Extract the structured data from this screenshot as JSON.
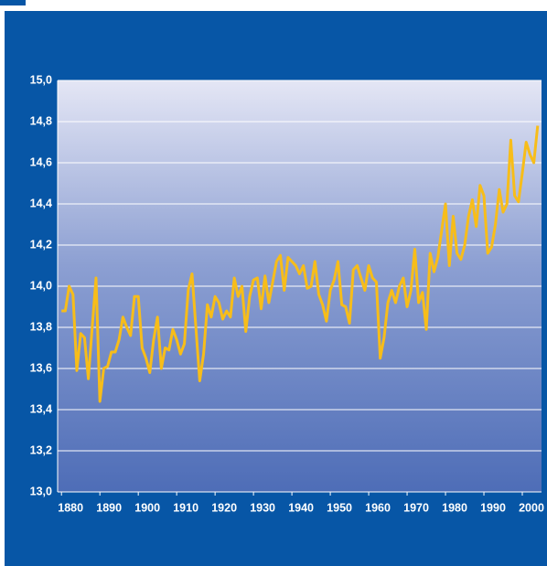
{
  "chart_data": {
    "type": "line",
    "x": [
      1880,
      1881,
      1882,
      1883,
      1884,
      1885,
      1886,
      1887,
      1888,
      1889,
      1890,
      1891,
      1892,
      1893,
      1894,
      1895,
      1896,
      1897,
      1898,
      1899,
      1900,
      1901,
      1902,
      1903,
      1904,
      1905,
      1906,
      1907,
      1908,
      1909,
      1910,
      1911,
      1912,
      1913,
      1914,
      1915,
      1916,
      1917,
      1918,
      1919,
      1920,
      1921,
      1922,
      1923,
      1924,
      1925,
      1926,
      1927,
      1928,
      1929,
      1930,
      1931,
      1932,
      1933,
      1934,
      1935,
      1936,
      1937,
      1938,
      1939,
      1940,
      1941,
      1942,
      1943,
      1944,
      1945,
      1946,
      1947,
      1948,
      1949,
      1950,
      1951,
      1952,
      1953,
      1954,
      1955,
      1956,
      1957,
      1958,
      1959,
      1960,
      1961,
      1962,
      1963,
      1964,
      1965,
      1966,
      1967,
      1968,
      1969,
      1970,
      1971,
      1972,
      1973,
      1974,
      1975,
      1976,
      1977,
      1978,
      1979,
      1980,
      1981,
      1982,
      1983,
      1984,
      1985,
      1986,
      1987,
      1988,
      1989,
      1990,
      1991,
      1992,
      1993,
      1994,
      1995,
      1996,
      1997,
      1998,
      1999,
      2000,
      2001,
      2002,
      2003,
      2004
    ],
    "values": [
      13.88,
      13.88,
      14.0,
      13.96,
      13.59,
      13.77,
      13.75,
      13.55,
      13.8,
      14.04,
      13.44,
      13.6,
      13.61,
      13.68,
      13.68,
      13.74,
      13.85,
      13.8,
      13.76,
      13.95,
      13.95,
      13.7,
      13.65,
      13.58,
      13.74,
      13.85,
      13.6,
      13.7,
      13.69,
      13.79,
      13.74,
      13.67,
      13.72,
      13.98,
      14.06,
      13.8,
      13.54,
      13.67,
      13.91,
      13.85,
      13.95,
      13.92,
      13.84,
      13.88,
      13.85,
      14.04,
      13.95,
      14.0,
      13.78,
      13.95,
      14.03,
      14.04,
      13.89,
      14.05,
      13.92,
      14.02,
      14.12,
      14.15,
      13.98,
      14.14,
      14.12,
      14.1,
      14.06,
      14.1,
      13.99,
      14.0,
      14.12,
      13.96,
      13.91,
      13.83,
      13.98,
      14.03,
      14.12,
      13.91,
      13.9,
      13.82,
      14.08,
      14.1,
      14.04,
      13.98,
      14.1,
      14.04,
      14.02,
      13.65,
      13.75,
      13.92,
      13.98,
      13.92,
      14.0,
      14.04,
      13.9,
      13.98,
      14.18,
      13.92,
      13.97,
      13.79,
      14.16,
      14.07,
      14.14,
      14.27,
      14.4,
      14.1,
      14.34,
      14.16,
      14.13,
      14.2,
      14.34,
      14.42,
      14.29,
      14.49,
      14.44,
      14.16,
      14.19,
      14.3,
      14.47,
      14.36,
      14.4,
      14.71,
      14.44,
      14.41,
      14.55,
      14.7,
      14.64,
      14.6,
      14.78
    ],
    "color": "#f7bd1a",
    "xlim": [
      1879,
      2005
    ],
    "xticks": [
      1880,
      1890,
      1900,
      1910,
      1920,
      1930,
      1940,
      1950,
      1960,
      1970,
      1980,
      1990,
      2000
    ],
    "ylim": [
      13.0,
      15.0
    ],
    "yticks": [
      {
        "value": 13.0,
        "label": "13,0"
      },
      {
        "value": 13.2,
        "label": "13,2"
      },
      {
        "value": 13.4,
        "label": "13,4"
      },
      {
        "value": 13.6,
        "label": "13,6"
      },
      {
        "value": 13.8,
        "label": "13,8"
      },
      {
        "value": 14.0,
        "label": "14,0"
      },
      {
        "value": 14.2,
        "label": "14,2"
      },
      {
        "value": 14.4,
        "label": "14,4"
      },
      {
        "value": 14.6,
        "label": "14,6"
      },
      {
        "value": 14.8,
        "label": "14,8"
      },
      {
        "value": 15.0,
        "label": "15,0"
      }
    ],
    "grid": true
  }
}
